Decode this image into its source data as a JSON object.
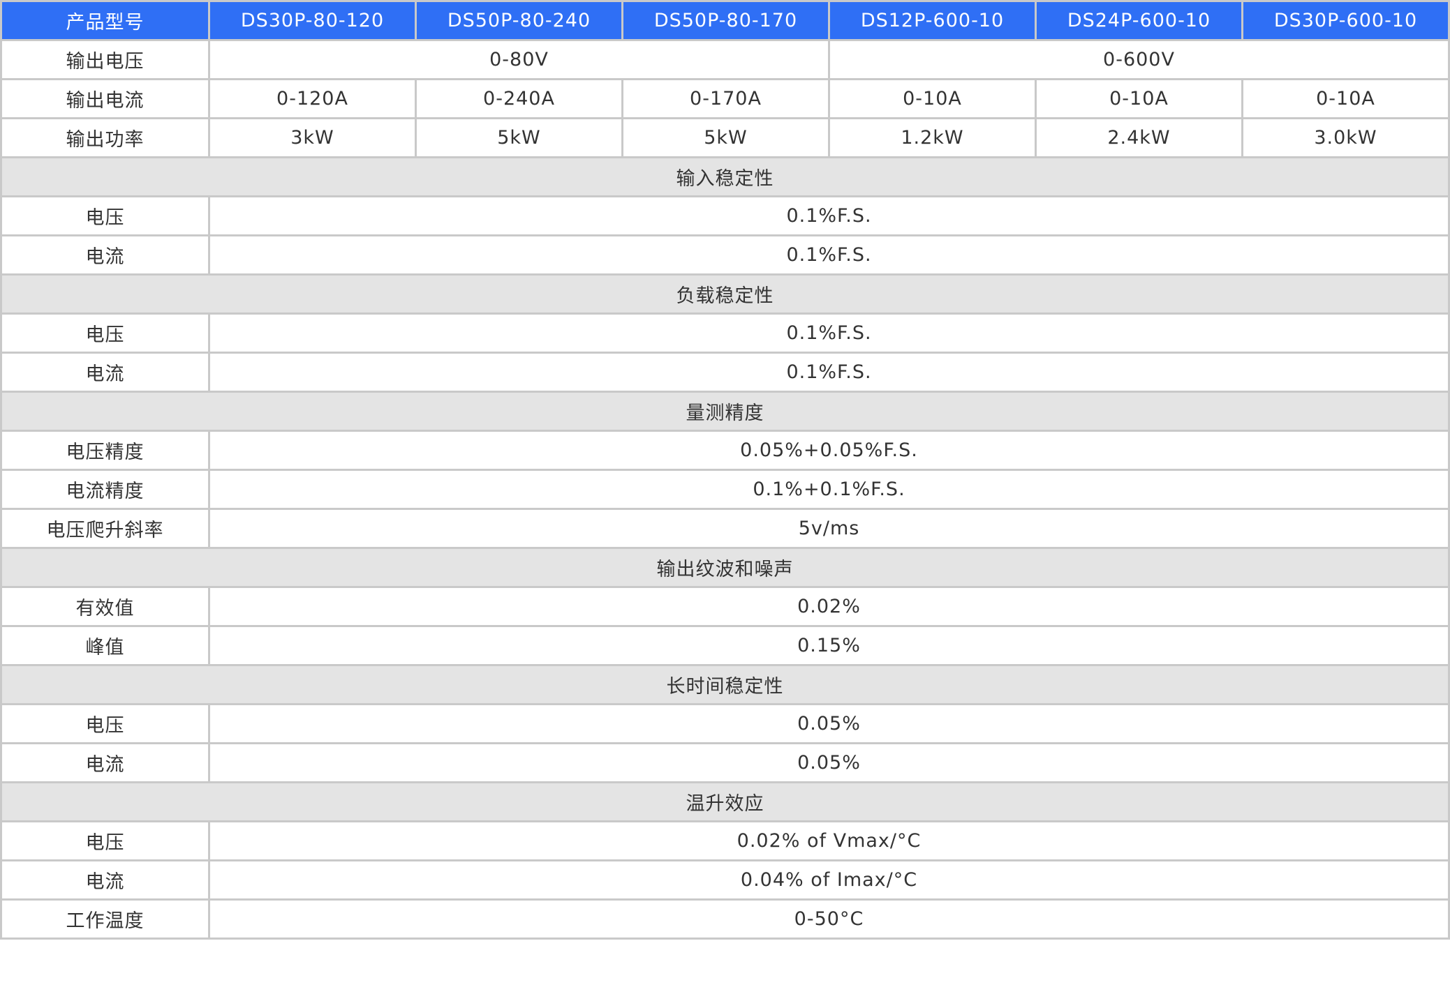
{
  "header": [
    "产品型号",
    "DS30P-80-120",
    "DS50P-80-240",
    "DS50P-80-170",
    "DS12P-600-10",
    "DS24P-600-10",
    "DS30P-600-10"
  ],
  "colors": {
    "header_bg": "#2f6ff5",
    "section_bg": "#e4e4e4",
    "border": "#c9c9c9",
    "text": "#333333"
  },
  "rows": [
    {
      "type": "spec",
      "label": "输出电压",
      "cells": [
        {
          "text": "0-80V",
          "span": 3
        },
        {
          "text": "0-600V",
          "span": 3
        }
      ]
    },
    {
      "type": "spec",
      "label": "输出电流",
      "cells": [
        {
          "text": "0-120A"
        },
        {
          "text": "0-240A"
        },
        {
          "text": "0-170A"
        },
        {
          "text": "0-10A"
        },
        {
          "text": "0-10A"
        },
        {
          "text": "0-10A"
        }
      ]
    },
    {
      "type": "spec",
      "label": "输出功率",
      "cells": [
        {
          "text": "3kW"
        },
        {
          "text": "5kW"
        },
        {
          "text": "5kW"
        },
        {
          "text": "1.2kW"
        },
        {
          "text": "2.4kW"
        },
        {
          "text": "3.0kW"
        }
      ]
    },
    {
      "type": "section",
      "label": "输入稳定性"
    },
    {
      "type": "spec",
      "label": "电压",
      "cells": [
        {
          "text": "0.1%F.S.",
          "span": 6
        }
      ]
    },
    {
      "type": "spec",
      "label": "电流",
      "cells": [
        {
          "text": "0.1%F.S.",
          "span": 6
        }
      ]
    },
    {
      "type": "section",
      "label": "负载稳定性"
    },
    {
      "type": "spec",
      "label": "电压",
      "cells": [
        {
          "text": "0.1%F.S.",
          "span": 6
        }
      ]
    },
    {
      "type": "spec",
      "label": "电流",
      "cells": [
        {
          "text": "0.1%F.S.",
          "span": 6
        }
      ]
    },
    {
      "type": "section",
      "label": "量测精度"
    },
    {
      "type": "spec",
      "label": "电压精度",
      "cells": [
        {
          "text": "0.05%+0.05%F.S.",
          "span": 6
        }
      ]
    },
    {
      "type": "spec",
      "label": "电流精度",
      "cells": [
        {
          "text": "0.1%+0.1%F.S.",
          "span": 6
        }
      ]
    },
    {
      "type": "spec",
      "label": "电压爬升斜率",
      "cells": [
        {
          "text": "5v/ms",
          "span": 6
        }
      ]
    },
    {
      "type": "section",
      "label": "输出纹波和噪声"
    },
    {
      "type": "spec",
      "label": "有效值",
      "cells": [
        {
          "text": "0.02%",
          "span": 6
        }
      ]
    },
    {
      "type": "spec",
      "label": "峰值",
      "cells": [
        {
          "text": "0.15%",
          "span": 6
        }
      ]
    },
    {
      "type": "section",
      "label": "长时间稳定性"
    },
    {
      "type": "spec",
      "label": "电压",
      "cells": [
        {
          "text": "0.05%",
          "span": 6
        }
      ]
    },
    {
      "type": "spec",
      "label": "电流",
      "cells": [
        {
          "text": "0.05%",
          "span": 6
        }
      ]
    },
    {
      "type": "section",
      "label": "温升效应"
    },
    {
      "type": "spec",
      "label": "电压",
      "cells": [
        {
          "text": "0.02% of Vmax/°C",
          "span": 6
        }
      ]
    },
    {
      "type": "spec",
      "label": "电流",
      "cells": [
        {
          "text": "0.04% of Imax/°C",
          "span": 6
        }
      ]
    },
    {
      "type": "spec",
      "label": "工作温度",
      "cells": [
        {
          "text": "0-50°C",
          "span": 6
        }
      ]
    }
  ]
}
